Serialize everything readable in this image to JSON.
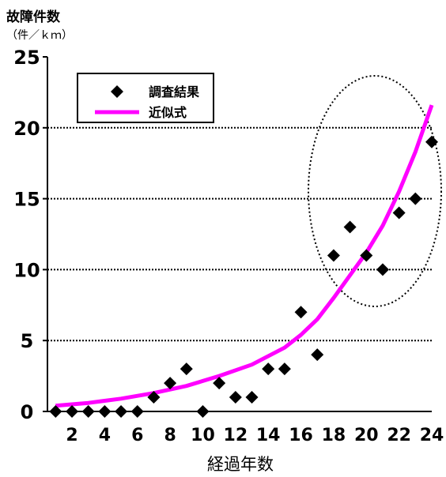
{
  "chart_data": {
    "type": "scatter",
    "ylabel": "故障件数",
    "yunit": "（件／ｋｍ）",
    "xlabel": "経過年数",
    "xlim": [
      0.5,
      24
    ],
    "ylim": [
      0,
      25
    ],
    "x_ticks": [
      2,
      4,
      6,
      8,
      10,
      12,
      14,
      16,
      18,
      20,
      22,
      24
    ],
    "y_ticks": [
      0,
      5,
      10,
      15,
      20,
      25
    ],
    "grid": "horizontal dotted",
    "legend_position": "top-left",
    "series": [
      {
        "name": "調査結果",
        "kind": "scatter",
        "marker": "diamond",
        "color": "#000000",
        "points": [
          [
            1,
            0
          ],
          [
            2,
            0
          ],
          [
            3,
            0
          ],
          [
            4,
            0
          ],
          [
            5,
            0
          ],
          [
            6,
            0
          ],
          [
            7,
            1
          ],
          [
            8,
            2
          ],
          [
            9,
            3
          ],
          [
            10,
            0
          ],
          [
            11,
            2
          ],
          [
            12,
            1
          ],
          [
            13,
            1
          ],
          [
            14,
            3
          ],
          [
            15,
            3
          ],
          [
            16,
            7
          ],
          [
            17,
            4
          ],
          [
            18,
            11
          ],
          [
            19,
            13
          ],
          [
            20,
            11
          ],
          [
            21,
            10
          ],
          [
            22,
            14
          ],
          [
            23,
            15
          ],
          [
            24,
            19
          ]
        ]
      },
      {
        "name": "近似式",
        "kind": "line",
        "color": "#ff00ff",
        "points": [
          [
            1,
            0.4
          ],
          [
            3,
            0.6
          ],
          [
            5,
            0.9
          ],
          [
            7,
            1.3
          ],
          [
            9,
            1.8
          ],
          [
            11,
            2.5
          ],
          [
            13,
            3.3
          ],
          [
            15,
            4.5
          ],
          [
            16,
            5.4
          ],
          [
            17,
            6.5
          ],
          [
            18,
            8
          ],
          [
            19,
            9.6
          ],
          [
            20,
            11.2
          ],
          [
            21,
            13.1
          ],
          [
            22,
            15.5
          ],
          [
            23,
            18.3
          ],
          [
            24,
            21.6
          ]
        ]
      }
    ],
    "annotation": "dotted ellipse"
  }
}
